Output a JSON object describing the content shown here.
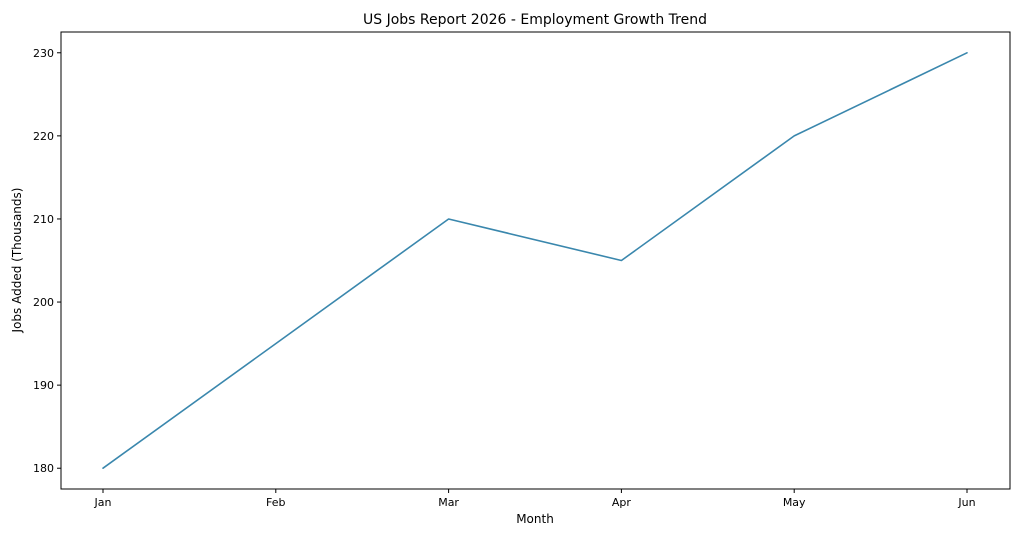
{
  "chart_data": {
    "type": "line",
    "title": "US Jobs Report 2026 - Employment Growth Trend",
    "xlabel": "Month",
    "ylabel": "Jobs Added (Thousands)",
    "categories": [
      "Jan",
      "Feb",
      "Mar",
      "Apr",
      "May",
      "Jun"
    ],
    "series": [
      {
        "values": [
          180,
          195,
          210,
          205,
          220,
          230
        ],
        "color": "#3a87ad"
      }
    ],
    "yticks": [
      180,
      190,
      200,
      210,
      220,
      230
    ],
    "ylim": [
      177.5,
      232.5
    ],
    "grid": false,
    "legend": "none"
  }
}
